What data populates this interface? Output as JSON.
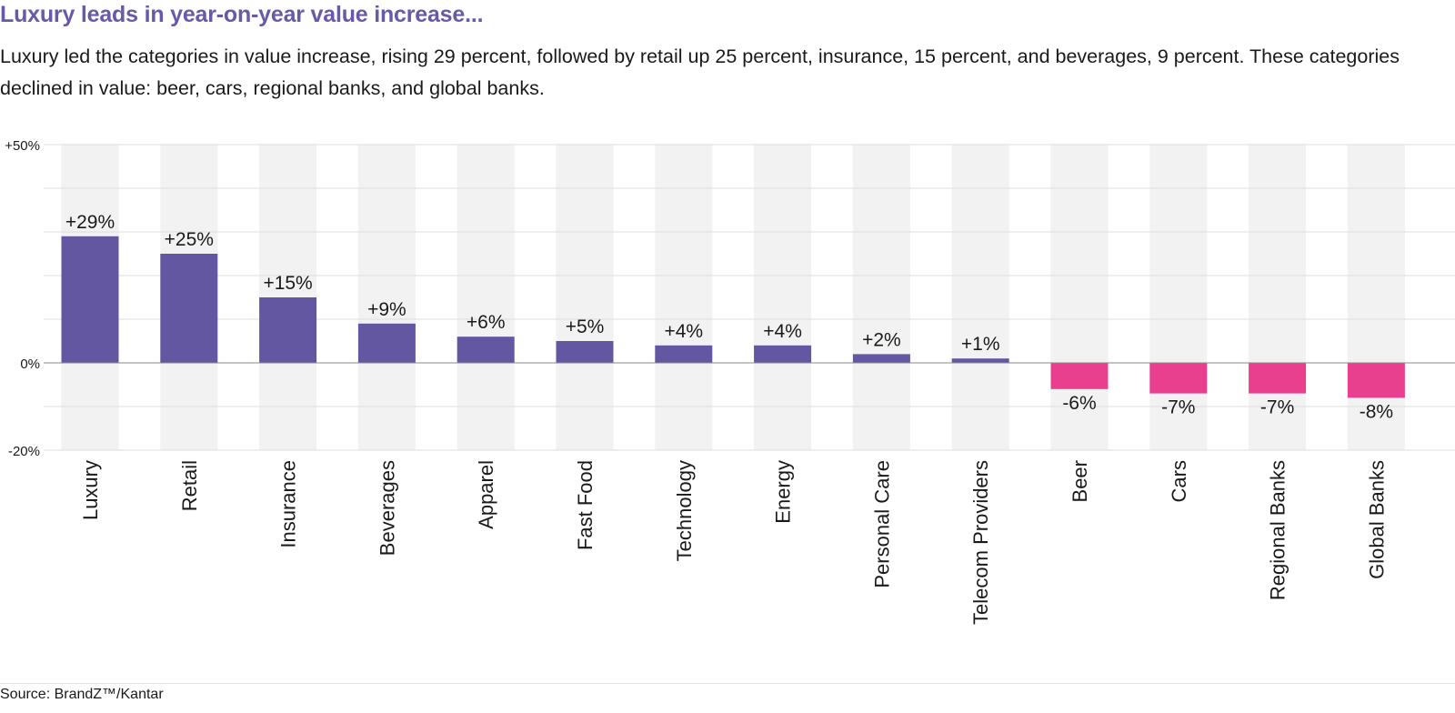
{
  "chart_data": {
    "type": "bar",
    "title": "Luxury leads in year-on-year value increase...",
    "subtitle": "Luxury led the categories in value increase, rising 29 percent, followed by retail up 25 percent, insurance, 15 percent, and beverages, 9 percent. These categories declined in value: beer, cars, regional banks, and global banks.",
    "categories": [
      "Luxury",
      "Retail",
      "Insurance",
      "Beverages",
      "Apparel",
      "Fast Food",
      "Technology",
      "Energy",
      "Personal Care",
      "Telecom Providers",
      "Beer",
      "Cars",
      "Regional Banks",
      "Global Banks"
    ],
    "values": [
      29,
      25,
      15,
      9,
      6,
      5,
      4,
      4,
      2,
      1,
      -6,
      -7,
      -7,
      -8
    ],
    "value_labels": [
      "+29%",
      "+25%",
      "+15%",
      "+9%",
      "+6%",
      "+5%",
      "+4%",
      "+4%",
      "+2%",
      "+1%",
      "-6%",
      "-7%",
      "-7%",
      "-8%"
    ],
    "ylim": [
      -20,
      50
    ],
    "yticks": [
      50,
      40,
      30,
      20,
      10,
      0,
      -10,
      -20
    ],
    "ytick_labels": [
      "+50%",
      "",
      "",
      "",
      "",
      "0%",
      "",
      "-20%"
    ],
    "xlabel": "",
    "ylabel": "",
    "grid": true,
    "colors": {
      "positive": "#6457a2",
      "negative": "#e8408f",
      "column_band": "#f2f2f2",
      "title": "#6a58a8",
      "gridline": "#dddddd",
      "zero_line": "#888888"
    },
    "source": "Source: BrandZ™/Kantar"
  }
}
